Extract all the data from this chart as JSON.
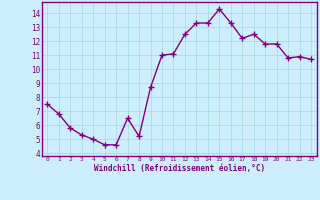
{
  "x": [
    0,
    1,
    2,
    3,
    4,
    5,
    6,
    7,
    8,
    9,
    10,
    11,
    12,
    13,
    14,
    15,
    16,
    17,
    18,
    19,
    20,
    21,
    22,
    23
  ],
  "y": [
    7.5,
    6.8,
    5.8,
    5.3,
    5.0,
    4.6,
    4.6,
    6.5,
    5.2,
    8.7,
    11.0,
    11.1,
    12.5,
    13.3,
    13.3,
    14.3,
    13.3,
    12.2,
    12.5,
    11.8,
    11.8,
    10.8,
    10.9,
    10.7
  ],
  "xlabel": "Windchill (Refroidissement éolien,°C)",
  "ylim": [
    3.8,
    14.8
  ],
  "xlim": [
    -0.5,
    23.5
  ],
  "yticks": [
    4,
    5,
    6,
    7,
    8,
    9,
    10,
    11,
    12,
    13,
    14
  ],
  "xticks": [
    0,
    1,
    2,
    3,
    4,
    5,
    6,
    7,
    8,
    9,
    10,
    11,
    12,
    13,
    14,
    15,
    16,
    17,
    18,
    19,
    20,
    21,
    22,
    23
  ],
  "line_color": "#800080",
  "marker": "+",
  "bg_color": "#cceeff",
  "grid_color": "#aadddd",
  "axis_color": "#800080",
  "font_color": "#800080"
}
